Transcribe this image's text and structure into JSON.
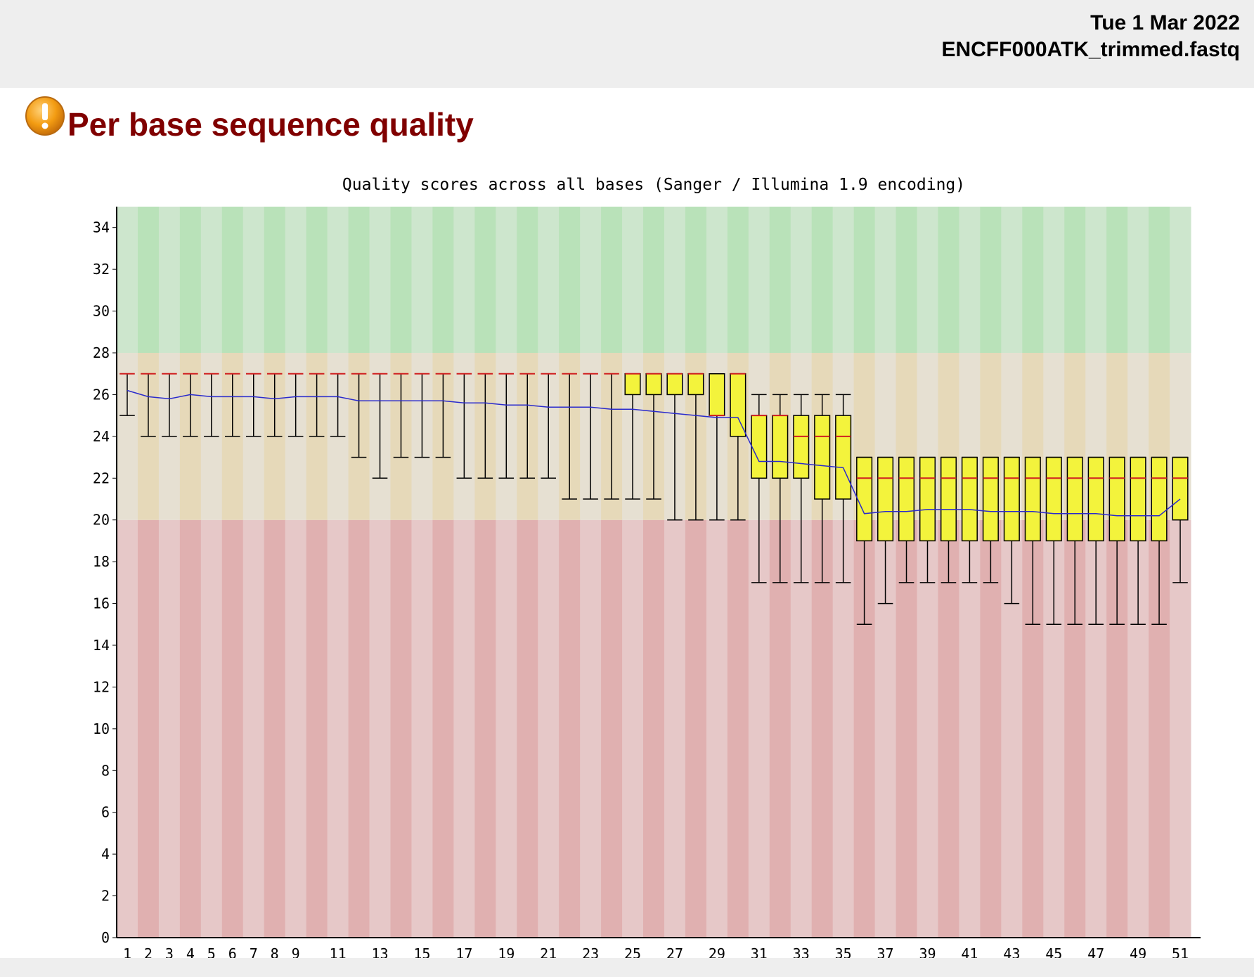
{
  "header": {
    "date": "Tue 1 Mar 2022",
    "filename": "ENCFF000ATK_trimmed.fastq"
  },
  "section": {
    "title": "Per base sequence quality",
    "status_icon": "warning-icon"
  },
  "colors": {
    "good_band": "#b9e2b9",
    "good_band_alt": "#cde6cd",
    "warn_band": "#e6d9b9",
    "warn_band_alt": "#e6e0d2",
    "bad_band": "#e0b0b0",
    "bad_band_alt": "#e6c8c8",
    "box_fill": "#f3f33c",
    "median": "#d02020",
    "mean_line": "#2a2acc",
    "title_color": "#800000"
  },
  "chart_data": {
    "type": "boxplot",
    "title": "Quality scores across all bases (Sanger / Illumina 1.9 encoding)",
    "xlabel": "",
    "ylabel": "",
    "ylim": [
      0,
      35
    ],
    "yticks": [
      0,
      2,
      4,
      6,
      8,
      10,
      12,
      14,
      16,
      18,
      20,
      22,
      24,
      26,
      28,
      30,
      32,
      34
    ],
    "xtick_labels": [
      "1",
      "2",
      "3",
      "4",
      "5",
      "6",
      "7",
      "8",
      "9",
      "11",
      "13",
      "15",
      "17",
      "19",
      "21",
      "23",
      "25",
      "27",
      "29",
      "31",
      "33",
      "35",
      "37",
      "39",
      "41",
      "43",
      "45",
      "47",
      "49",
      "51"
    ],
    "bands": {
      "bad": [
        0,
        20
      ],
      "warn": [
        20,
        28
      ],
      "good": [
        28,
        35
      ]
    },
    "positions": [
      1,
      2,
      3,
      4,
      5,
      6,
      7,
      8,
      9,
      10,
      11,
      12,
      13,
      14,
      15,
      16,
      17,
      18,
      19,
      20,
      21,
      22,
      23,
      24,
      25,
      26,
      27,
      28,
      29,
      30,
      31,
      32,
      33,
      34,
      35,
      36,
      37,
      38,
      39,
      40,
      41,
      42,
      43,
      44,
      45,
      46,
      47,
      48,
      49,
      50,
      51
    ],
    "q1": [
      27,
      27,
      27,
      27,
      27,
      27,
      27,
      27,
      27,
      27,
      27,
      27,
      27,
      27,
      27,
      27,
      27,
      27,
      27,
      27,
      27,
      27,
      27,
      27,
      26,
      26,
      26,
      26,
      25,
      24,
      22,
      22,
      22,
      21,
      21,
      19,
      19,
      19,
      19,
      19,
      19,
      19,
      19,
      19,
      19,
      19,
      19,
      19,
      19,
      19,
      20
    ],
    "median": [
      27,
      27,
      27,
      27,
      27,
      27,
      27,
      27,
      27,
      27,
      27,
      27,
      27,
      27,
      27,
      27,
      27,
      27,
      27,
      27,
      27,
      27,
      27,
      27,
      27,
      27,
      27,
      27,
      25,
      27,
      25,
      25,
      24,
      24,
      24,
      22,
      22,
      22,
      22,
      22,
      22,
      22,
      22,
      22,
      22,
      22,
      22,
      22,
      22,
      22,
      22
    ],
    "q3": [
      27,
      27,
      27,
      27,
      27,
      27,
      27,
      27,
      27,
      27,
      27,
      27,
      27,
      27,
      27,
      27,
      27,
      27,
      27,
      27,
      27,
      27,
      27,
      27,
      27,
      27,
      27,
      27,
      27,
      27,
      25,
      25,
      25,
      25,
      25,
      23,
      23,
      23,
      23,
      23,
      23,
      23,
      23,
      23,
      23,
      23,
      23,
      23,
      23,
      23,
      23
    ],
    "whisker_low": [
      25,
      24,
      24,
      24,
      24,
      24,
      24,
      24,
      24,
      24,
      24,
      23,
      22,
      23,
      23,
      23,
      22,
      22,
      22,
      22,
      22,
      21,
      21,
      21,
      21,
      21,
      20,
      20,
      20,
      20,
      17,
      17,
      17,
      17,
      17,
      15,
      16,
      17,
      17,
      17,
      17,
      17,
      16,
      15,
      15,
      15,
      15,
      15,
      15,
      15,
      17
    ],
    "whisker_high": [
      27,
      27,
      27,
      27,
      27,
      27,
      27,
      27,
      27,
      27,
      27,
      27,
      27,
      27,
      27,
      27,
      27,
      27,
      27,
      27,
      27,
      27,
      27,
      27,
      27,
      27,
      27,
      27,
      27,
      27,
      26,
      26,
      26,
      26,
      26,
      23,
      23,
      23,
      23,
      23,
      23,
      23,
      23,
      23,
      23,
      23,
      23,
      23,
      23,
      23,
      23
    ],
    "mean": [
      26.2,
      25.9,
      25.8,
      26.0,
      25.9,
      25.9,
      25.9,
      25.8,
      25.9,
      25.9,
      25.9,
      25.7,
      25.7,
      25.7,
      25.7,
      25.7,
      25.6,
      25.6,
      25.5,
      25.5,
      25.4,
      25.4,
      25.4,
      25.3,
      25.3,
      25.2,
      25.1,
      25.0,
      24.9,
      24.9,
      22.8,
      22.8,
      22.7,
      22.6,
      22.5,
      20.3,
      20.4,
      20.4,
      20.5,
      20.5,
      20.5,
      20.4,
      20.4,
      20.4,
      20.3,
      20.3,
      20.3,
      20.2,
      20.2,
      20.2,
      21.0
    ]
  }
}
